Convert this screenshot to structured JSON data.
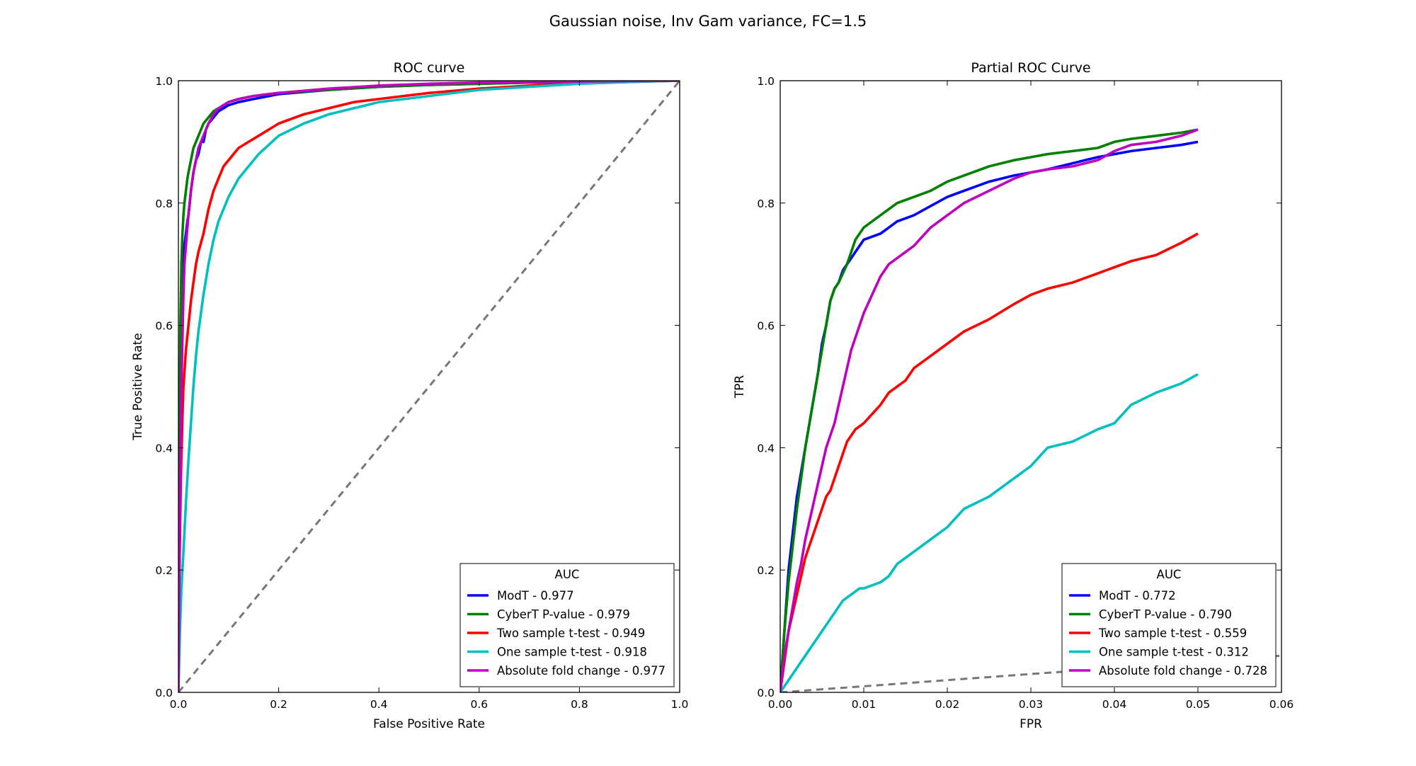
{
  "figure": {
    "suptitle": "Gaussian noise, Inv Gam variance, FC=1.5"
  },
  "chart_data": [
    {
      "type": "line",
      "title": "ROC curve",
      "xlabel": "False Positive Rate",
      "ylabel": "True Positive Rate",
      "xlim": [
        0,
        1.0
      ],
      "ylim": [
        0,
        1.0
      ],
      "xticks": [
        "0.0",
        "0.2",
        "0.4",
        "0.6",
        "0.8",
        "1.0"
      ],
      "yticks": [
        "0.0",
        "0.2",
        "0.4",
        "0.6",
        "0.8",
        "1.0"
      ],
      "grid": false,
      "legend": {
        "title": "AUC",
        "position": "lower-right",
        "entries": [
          "ModT - 0.977",
          "CyberT P-value - 0.979",
          "Two sample t-test - 0.949",
          "One sample t-test - 0.918",
          "Absolute fold change - 0.977"
        ]
      },
      "reference_line": {
        "x": [
          0,
          1.0
        ],
        "y": [
          0,
          1.0
        ],
        "color": "#777777",
        "style": "dashed"
      },
      "series": [
        {
          "color": "#0000ff",
          "x": [
            0,
            0.002,
            0.004,
            0.006,
            0.008,
            0.01,
            0.012,
            0.015,
            0.018,
            0.02,
            0.025,
            0.03,
            0.035,
            0.04,
            0.045,
            0.05,
            0.055,
            0.06,
            0.07,
            0.08,
            0.1,
            0.12,
            0.15,
            0.2,
            0.3,
            0.4,
            0.5,
            0.6,
            0.7,
            0.8,
            0.9,
            1.0
          ],
          "y": [
            0,
            0.3,
            0.5,
            0.6,
            0.66,
            0.7,
            0.73,
            0.75,
            0.77,
            0.78,
            0.82,
            0.85,
            0.87,
            0.88,
            0.9,
            0.9,
            0.92,
            0.93,
            0.94,
            0.95,
            0.96,
            0.965,
            0.97,
            0.978,
            0.985,
            0.99,
            0.993,
            0.995,
            0.997,
            0.998,
            0.999,
            1.0
          ]
        },
        {
          "color": "#008000",
          "x": [
            0,
            0.002,
            0.004,
            0.006,
            0.008,
            0.01,
            0.012,
            0.015,
            0.018,
            0.02,
            0.025,
            0.03,
            0.035,
            0.04,
            0.045,
            0.05,
            0.055,
            0.06,
            0.07,
            0.08,
            0.1,
            0.12,
            0.15,
            0.2,
            0.3,
            0.4,
            0.5,
            0.6,
            0.7,
            0.8,
            0.9,
            1.0
          ],
          "y": [
            0,
            0.4,
            0.6,
            0.7,
            0.75,
            0.78,
            0.8,
            0.82,
            0.84,
            0.85,
            0.87,
            0.89,
            0.9,
            0.91,
            0.92,
            0.93,
            0.935,
            0.94,
            0.95,
            0.955,
            0.965,
            0.97,
            0.975,
            0.98,
            0.985,
            0.99,
            0.993,
            0.995,
            0.997,
            0.998,
            0.999,
            1.0
          ]
        },
        {
          "color": "#ff0000",
          "x": [
            0,
            0.002,
            0.005,
            0.008,
            0.01,
            0.015,
            0.02,
            0.025,
            0.03,
            0.035,
            0.04,
            0.05,
            0.06,
            0.07,
            0.08,
            0.09,
            0.1,
            0.12,
            0.14,
            0.16,
            0.2,
            0.25,
            0.3,
            0.35,
            0.4,
            0.5,
            0.6,
            0.7,
            0.8,
            0.9,
            1.0
          ],
          "y": [
            0,
            0.2,
            0.35,
            0.45,
            0.5,
            0.56,
            0.6,
            0.64,
            0.67,
            0.7,
            0.72,
            0.75,
            0.79,
            0.82,
            0.84,
            0.86,
            0.87,
            0.89,
            0.9,
            0.91,
            0.93,
            0.945,
            0.955,
            0.965,
            0.97,
            0.98,
            0.987,
            0.992,
            0.996,
            0.998,
            1.0
          ]
        },
        {
          "color": "#00bfbf",
          "x": [
            0,
            0.003,
            0.006,
            0.01,
            0.015,
            0.02,
            0.025,
            0.03,
            0.035,
            0.04,
            0.05,
            0.06,
            0.07,
            0.08,
            0.09,
            0.1,
            0.12,
            0.14,
            0.16,
            0.2,
            0.25,
            0.3,
            0.35,
            0.4,
            0.5,
            0.6,
            0.7,
            0.8,
            0.9,
            1.0
          ],
          "y": [
            0,
            0.1,
            0.17,
            0.23,
            0.31,
            0.38,
            0.44,
            0.5,
            0.55,
            0.59,
            0.65,
            0.7,
            0.74,
            0.77,
            0.79,
            0.81,
            0.84,
            0.86,
            0.88,
            0.91,
            0.93,
            0.945,
            0.955,
            0.965,
            0.975,
            0.985,
            0.99,
            0.995,
            0.998,
            1.0
          ]
        },
        {
          "color": "#bf00bf",
          "x": [
            0,
            0.002,
            0.004,
            0.006,
            0.008,
            0.01,
            0.012,
            0.015,
            0.018,
            0.02,
            0.025,
            0.03,
            0.035,
            0.04,
            0.045,
            0.05,
            0.055,
            0.06,
            0.07,
            0.08,
            0.1,
            0.12,
            0.15,
            0.2,
            0.3,
            0.4,
            0.5,
            0.6,
            0.7,
            0.8,
            0.9,
            1.0
          ],
          "y": [
            0,
            0.2,
            0.35,
            0.5,
            0.58,
            0.65,
            0.7,
            0.73,
            0.76,
            0.78,
            0.82,
            0.85,
            0.87,
            0.89,
            0.9,
            0.91,
            0.92,
            0.93,
            0.945,
            0.955,
            0.965,
            0.97,
            0.975,
            0.98,
            0.987,
            0.992,
            0.995,
            0.997,
            0.998,
            0.999,
            0.9995,
            1.0
          ]
        }
      ]
    },
    {
      "type": "line",
      "title": "Partial ROC Curve",
      "xlabel": "FPR",
      "ylabel": "TPR",
      "xlim": [
        0,
        0.06
      ],
      "ylim": [
        0,
        1.0
      ],
      "xticks": [
        "0.00",
        "0.01",
        "0.02",
        "0.03",
        "0.04",
        "0.05",
        "0.06"
      ],
      "yticks": [
        "0.0",
        "0.2",
        "0.4",
        "0.6",
        "0.8",
        "1.0"
      ],
      "grid": false,
      "legend": {
        "title": "AUC",
        "position": "lower-right",
        "entries": [
          "ModT - 0.772",
          "CyberT P-value - 0.790",
          "Two sample t-test - 0.559",
          "One sample t-test - 0.312",
          "Absolute fold change - 0.728"
        ]
      },
      "reference_line": {
        "x": [
          0,
          0.06
        ],
        "y": [
          0,
          0.06
        ],
        "color": "#777777",
        "style": "dashed"
      },
      "series": [
        {
          "color": "#0000ff",
          "x": [
            0,
            0.0005,
            0.001,
            0.0015,
            0.002,
            0.0025,
            0.003,
            0.0035,
            0.004,
            0.0045,
            0.005,
            0.0055,
            0.006,
            0.0065,
            0.007,
            0.0075,
            0.008,
            0.0085,
            0.009,
            0.0095,
            0.01,
            0.011,
            0.012,
            0.013,
            0.014,
            0.015,
            0.016,
            0.018,
            0.02,
            0.022,
            0.025,
            0.028,
            0.03,
            0.032,
            0.035,
            0.038,
            0.04,
            0.042,
            0.045,
            0.048,
            0.05
          ],
          "y": [
            0,
            0.1,
            0.2,
            0.26,
            0.32,
            0.36,
            0.4,
            0.44,
            0.48,
            0.52,
            0.57,
            0.6,
            0.64,
            0.66,
            0.67,
            0.69,
            0.7,
            0.71,
            0.72,
            0.73,
            0.74,
            0.745,
            0.75,
            0.76,
            0.77,
            0.775,
            0.78,
            0.795,
            0.81,
            0.82,
            0.835,
            0.845,
            0.85,
            0.855,
            0.865,
            0.875,
            0.88,
            0.885,
            0.89,
            0.895,
            0.9
          ]
        },
        {
          "color": "#008000",
          "x": [
            0,
            0.0005,
            0.001,
            0.0015,
            0.002,
            0.0025,
            0.003,
            0.0035,
            0.004,
            0.0045,
            0.005,
            0.0055,
            0.006,
            0.0065,
            0.007,
            0.0075,
            0.008,
            0.0085,
            0.009,
            0.0095,
            0.01,
            0.011,
            0.012,
            0.013,
            0.014,
            0.015,
            0.016,
            0.018,
            0.02,
            0.022,
            0.025,
            0.028,
            0.03,
            0.032,
            0.035,
            0.038,
            0.04,
            0.042,
            0.045,
            0.048,
            0.05
          ],
          "y": [
            0,
            0.1,
            0.18,
            0.24,
            0.3,
            0.35,
            0.4,
            0.44,
            0.48,
            0.52,
            0.56,
            0.6,
            0.64,
            0.66,
            0.67,
            0.685,
            0.7,
            0.72,
            0.74,
            0.75,
            0.76,
            0.77,
            0.78,
            0.79,
            0.8,
            0.805,
            0.81,
            0.82,
            0.835,
            0.845,
            0.86,
            0.87,
            0.875,
            0.88,
            0.885,
            0.89,
            0.9,
            0.905,
            0.91,
            0.915,
            0.92
          ]
        },
        {
          "color": "#ff0000",
          "x": [
            0,
            0.0005,
            0.001,
            0.0015,
            0.002,
            0.0025,
            0.003,
            0.0035,
            0.004,
            0.0045,
            0.005,
            0.0055,
            0.006,
            0.0065,
            0.007,
            0.0075,
            0.008,
            0.0085,
            0.009,
            0.0095,
            0.01,
            0.011,
            0.012,
            0.013,
            0.014,
            0.015,
            0.016,
            0.018,
            0.02,
            0.022,
            0.025,
            0.028,
            0.03,
            0.032,
            0.035,
            0.038,
            0.04,
            0.042,
            0.045,
            0.048,
            0.05
          ],
          "y": [
            0,
            0.05,
            0.1,
            0.13,
            0.16,
            0.19,
            0.22,
            0.24,
            0.26,
            0.28,
            0.3,
            0.32,
            0.33,
            0.35,
            0.37,
            0.39,
            0.41,
            0.42,
            0.43,
            0.435,
            0.44,
            0.455,
            0.47,
            0.49,
            0.5,
            0.51,
            0.53,
            0.55,
            0.57,
            0.59,
            0.61,
            0.635,
            0.65,
            0.66,
            0.67,
            0.685,
            0.695,
            0.705,
            0.715,
            0.735,
            0.75
          ]
        },
        {
          "color": "#00bfbf",
          "x": [
            0,
            0.0005,
            0.001,
            0.0015,
            0.002,
            0.0025,
            0.003,
            0.0035,
            0.004,
            0.0045,
            0.005,
            0.0055,
            0.006,
            0.0065,
            0.007,
            0.0075,
            0.008,
            0.0085,
            0.009,
            0.0095,
            0.01,
            0.011,
            0.012,
            0.013,
            0.014,
            0.015,
            0.016,
            0.018,
            0.02,
            0.022,
            0.025,
            0.028,
            0.03,
            0.032,
            0.035,
            0.038,
            0.04,
            0.042,
            0.045,
            0.048,
            0.05
          ],
          "y": [
            0,
            0.01,
            0.02,
            0.03,
            0.04,
            0.05,
            0.06,
            0.07,
            0.08,
            0.09,
            0.1,
            0.11,
            0.12,
            0.13,
            0.14,
            0.15,
            0.155,
            0.16,
            0.165,
            0.17,
            0.17,
            0.175,
            0.18,
            0.19,
            0.21,
            0.22,
            0.23,
            0.25,
            0.27,
            0.3,
            0.32,
            0.35,
            0.37,
            0.4,
            0.41,
            0.43,
            0.44,
            0.47,
            0.49,
            0.505,
            0.52
          ]
        },
        {
          "color": "#bf00bf",
          "x": [
            0,
            0.0005,
            0.001,
            0.0015,
            0.002,
            0.0025,
            0.003,
            0.0035,
            0.004,
            0.0045,
            0.005,
            0.0055,
            0.006,
            0.0065,
            0.007,
            0.0075,
            0.008,
            0.0085,
            0.009,
            0.0095,
            0.01,
            0.011,
            0.012,
            0.013,
            0.014,
            0.015,
            0.016,
            0.018,
            0.02,
            0.022,
            0.025,
            0.028,
            0.03,
            0.032,
            0.035,
            0.038,
            0.04,
            0.042,
            0.045,
            0.048,
            0.05
          ],
          "y": [
            0,
            0.06,
            0.1,
            0.14,
            0.18,
            0.21,
            0.25,
            0.28,
            0.31,
            0.34,
            0.37,
            0.4,
            0.42,
            0.44,
            0.47,
            0.5,
            0.53,
            0.56,
            0.58,
            0.6,
            0.62,
            0.65,
            0.68,
            0.7,
            0.71,
            0.72,
            0.73,
            0.76,
            0.78,
            0.8,
            0.82,
            0.84,
            0.85,
            0.855,
            0.86,
            0.87,
            0.885,
            0.895,
            0.9,
            0.91,
            0.92
          ]
        }
      ]
    }
  ]
}
